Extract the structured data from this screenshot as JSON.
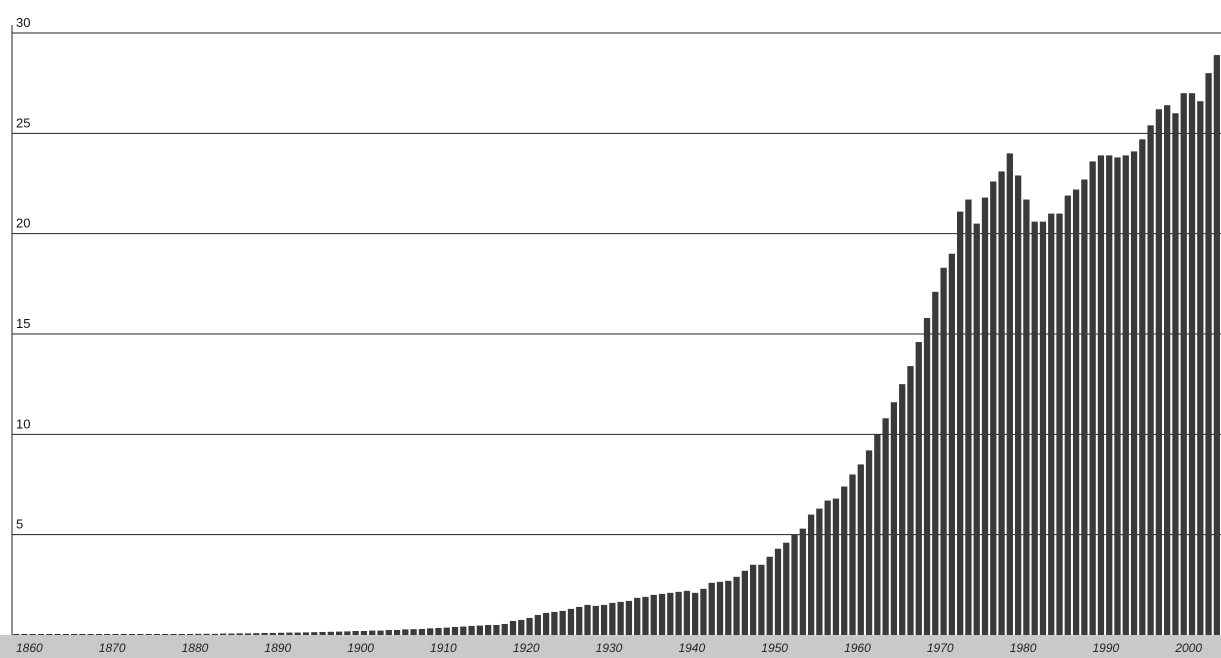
{
  "chart_data": {
    "type": "bar",
    "title": "",
    "xlabel": "",
    "ylabel": "",
    "x_range": [
      1860,
      2005
    ],
    "ylim": [
      0,
      30
    ],
    "yticks": [
      5,
      10,
      15,
      20,
      25,
      30
    ],
    "xticks": [
      1860,
      1870,
      1880,
      1890,
      1900,
      1910,
      1920,
      1930,
      1940,
      1950,
      1960,
      1970,
      1980,
      1990,
      2000
    ],
    "grid": true,
    "legend": "none",
    "bar_color": "#3a3a3a",
    "axis_band_color": "#c9c9c9",
    "x": [
      1860,
      1861,
      1862,
      1863,
      1864,
      1865,
      1866,
      1867,
      1868,
      1869,
      1870,
      1871,
      1872,
      1873,
      1874,
      1875,
      1876,
      1877,
      1878,
      1879,
      1880,
      1881,
      1882,
      1883,
      1884,
      1885,
      1886,
      1887,
      1888,
      1889,
      1890,
      1891,
      1892,
      1893,
      1894,
      1895,
      1896,
      1897,
      1898,
      1899,
      1900,
      1901,
      1902,
      1903,
      1904,
      1905,
      1906,
      1907,
      1908,
      1909,
      1910,
      1911,
      1912,
      1913,
      1914,
      1915,
      1916,
      1917,
      1918,
      1919,
      1920,
      1921,
      1922,
      1923,
      1924,
      1925,
      1926,
      1927,
      1928,
      1929,
      1930,
      1931,
      1932,
      1933,
      1934,
      1935,
      1936,
      1937,
      1938,
      1939,
      1940,
      1941,
      1942,
      1943,
      1944,
      1945,
      1946,
      1947,
      1948,
      1949,
      1950,
      1951,
      1952,
      1953,
      1954,
      1955,
      1956,
      1957,
      1958,
      1959,
      1960,
      1961,
      1962,
      1963,
      1964,
      1965,
      1966,
      1967,
      1968,
      1969,
      1970,
      1971,
      1972,
      1973,
      1974,
      1975,
      1976,
      1977,
      1978,
      1979,
      1980,
      1981,
      1982,
      1983,
      1984,
      1985,
      1986,
      1987,
      1988,
      1989,
      1990,
      1991,
      1992,
      1993,
      1994,
      1995,
      1996,
      1997,
      1998,
      1999,
      2000,
      2001,
      2002,
      2003,
      2004,
      2005
    ],
    "values": [
      0.01,
      0.01,
      0.01,
      0.01,
      0.01,
      0.01,
      0.02,
      0.02,
      0.02,
      0.02,
      0.02,
      0.02,
      0.03,
      0.03,
      0.03,
      0.03,
      0.03,
      0.04,
      0.04,
      0.05,
      0.05,
      0.05,
      0.06,
      0.06,
      0.06,
      0.07,
      0.07,
      0.08,
      0.08,
      0.09,
      0.1,
      0.1,
      0.11,
      0.12,
      0.12,
      0.13,
      0.14,
      0.15,
      0.16,
      0.17,
      0.18,
      0.2,
      0.2,
      0.22,
      0.22,
      0.25,
      0.25,
      0.28,
      0.29,
      0.3,
      0.33,
      0.35,
      0.37,
      0.4,
      0.42,
      0.45,
      0.47,
      0.5,
      0.5,
      0.55,
      0.7,
      0.75,
      0.85,
      1.0,
      1.1,
      1.15,
      1.2,
      1.3,
      1.4,
      1.5,
      1.45,
      1.5,
      1.6,
      1.65,
      1.7,
      1.85,
      1.9,
      2.0,
      2.05,
      2.1,
      2.15,
      2.2,
      2.1,
      2.3,
      2.6,
      2.65,
      2.7,
      2.9,
      3.2,
      3.5,
      3.5,
      3.9,
      4.3,
      4.6,
      5.0,
      5.3,
      6.0,
      6.3,
      6.7,
      6.8,
      7.4,
      8.0,
      8.5,
      9.2,
      10.0,
      10.8,
      11.6,
      12.5,
      13.4,
      14.6,
      15.8,
      17.1,
      18.3,
      19.0,
      21.1,
      21.7,
      20.5,
      21.8,
      22.6,
      23.1,
      24.0,
      22.9,
      21.7,
      20.6,
      20.6,
      21.0,
      21.0,
      21.9,
      22.2,
      22.7,
      23.6,
      23.9,
      23.9,
      23.8,
      23.9,
      24.1,
      24.7,
      25.4,
      26.2,
      26.4,
      26.0,
      27.0,
      27.0,
      26.6,
      28.0,
      28.9
    ]
  }
}
